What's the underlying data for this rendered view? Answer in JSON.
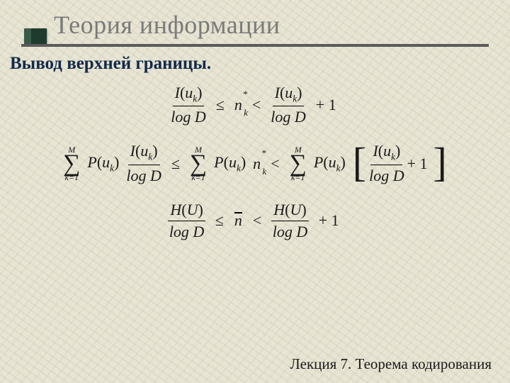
{
  "colors": {
    "bg": "#e8e5d4",
    "title": "#7a7a7a",
    "subtitle": "#122a4a",
    "rule": "#5b5b5b",
    "marker": "#1f3b2e",
    "text": "#1a1a1a"
  },
  "title": "Теория информации",
  "subtitle": "Вывод верхней границы.",
  "footer": "Лекция 7. Теорема кодирования",
  "math": {
    "I": "I",
    "u": "u",
    "k": "k",
    "logD": "log D",
    "n": "n",
    "P": "P",
    "M": "M",
    "k1": "k=1",
    "H": "H",
    "U": "U",
    "le": "≤",
    "lt": "<",
    "plus1": "+ 1",
    "star": "*",
    "lp": "(",
    "rp": ")",
    "lb": "[",
    "rb": "]"
  },
  "typography": {
    "title_size": 36,
    "subtitle_size": 25,
    "body_size": 22,
    "footer_size": 21,
    "family": "Times New Roman"
  }
}
